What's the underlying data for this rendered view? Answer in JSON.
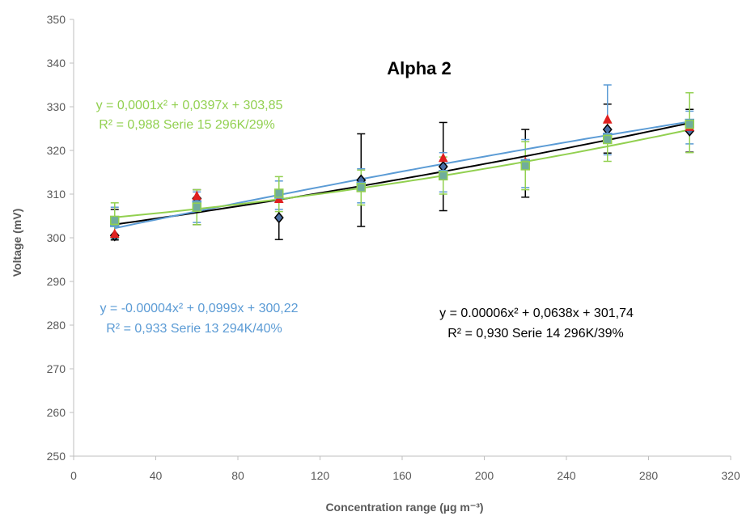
{
  "chart_data": {
    "type": "scatter",
    "title": "Alpha 2",
    "xlabel": "Concentration  range (µg m⁻³)",
    "ylabel": "Voltage  (mV)",
    "xlim": [
      0,
      320
    ],
    "ylim": [
      250,
      350
    ],
    "xticks": [
      0,
      40,
      80,
      120,
      160,
      200,
      240,
      280,
      320
    ],
    "yticks": [
      250,
      260,
      270,
      280,
      290,
      300,
      310,
      320,
      330,
      340,
      350
    ],
    "grid": false,
    "series": [
      {
        "marker": "diamond",
        "color": "#000000",
        "markerFill": "#4a6fa5",
        "x": [
          20,
          60,
          100,
          140,
          180,
          220,
          260,
          300
        ],
        "y": [
          300.5,
          309.0,
          304.6,
          313.2,
          316.3,
          317.0,
          324.8,
          324.5
        ],
        "err_low": [
          299.5,
          303.0,
          299.6,
          302.6,
          306.2,
          309.3,
          319.4,
          319.6
        ],
        "err_high": [
          306.5,
          311.0,
          309.6,
          323.8,
          326.4,
          324.8,
          330.6,
          329.4
        ],
        "fit": {
          "a": 6e-05,
          "b": 0.0638,
          "c": 301.74
        },
        "eq_line1": "y = 0.00006x² + 0,0638x + 301,74",
        "eq_line2": "R² = 0,930  Serie 14  296K/39%"
      },
      {
        "marker": "triangle",
        "color": "#e02020",
        "markerFill": "#e02020",
        "x": [
          20,
          60,
          100,
          140,
          180,
          220,
          260,
          300
        ],
        "y": [
          300.8,
          309.5,
          308.8,
          311.3,
          318.2,
          317.3,
          327.0,
          325.3
        ],
        "fit": null
      },
      {
        "marker": "square",
        "color": "#5b9bd5",
        "markerFill": "#70ad9c",
        "x": [
          20,
          60,
          100,
          140,
          180,
          220,
          260,
          300
        ],
        "y": [
          303.5,
          307.5,
          310.0,
          311.8,
          314.5,
          317.0,
          323.0,
          326.2
        ],
        "err_low": [
          299.8,
          303.5,
          306.5,
          308.0,
          310.5,
          311.5,
          319.0,
          321.5
        ],
        "err_high": [
          307.0,
          310.5,
          313.0,
          315.8,
          319.5,
          322.5,
          335.0,
          329.0
        ],
        "fit": {
          "a": -4e-05,
          "b": 0.0999,
          "c": 300.22
        },
        "eq_line1": "y = -0.00004x² + 0,0999x + 300,22",
        "eq_line2": "R² = 0,933  Serie 13  294K/40%"
      },
      {
        "marker": "square",
        "color": "#92d050",
        "markerFill": "#70ad9c",
        "x": [
          20,
          60,
          100,
          140,
          180,
          220,
          260,
          300
        ],
        "y": [
          304.0,
          307.0,
          310.2,
          311.5,
          314.2,
          316.5,
          322.5,
          326.0
        ],
        "err_low": [
          300.0,
          303.0,
          306.0,
          307.5,
          310.0,
          311.0,
          317.5,
          319.5
        ],
        "err_high": [
          308.0,
          311.0,
          314.0,
          315.5,
          318.5,
          322.0,
          326.5,
          333.2
        ],
        "fit": {
          "a": 0.0001,
          "b": 0.0397,
          "c": 303.85
        },
        "eq_line1": "y = 0,0001x² + 0,0397x + 303,85",
        "eq_line2": "R² = 0,988  Serie 15  296K/29%"
      }
    ]
  }
}
